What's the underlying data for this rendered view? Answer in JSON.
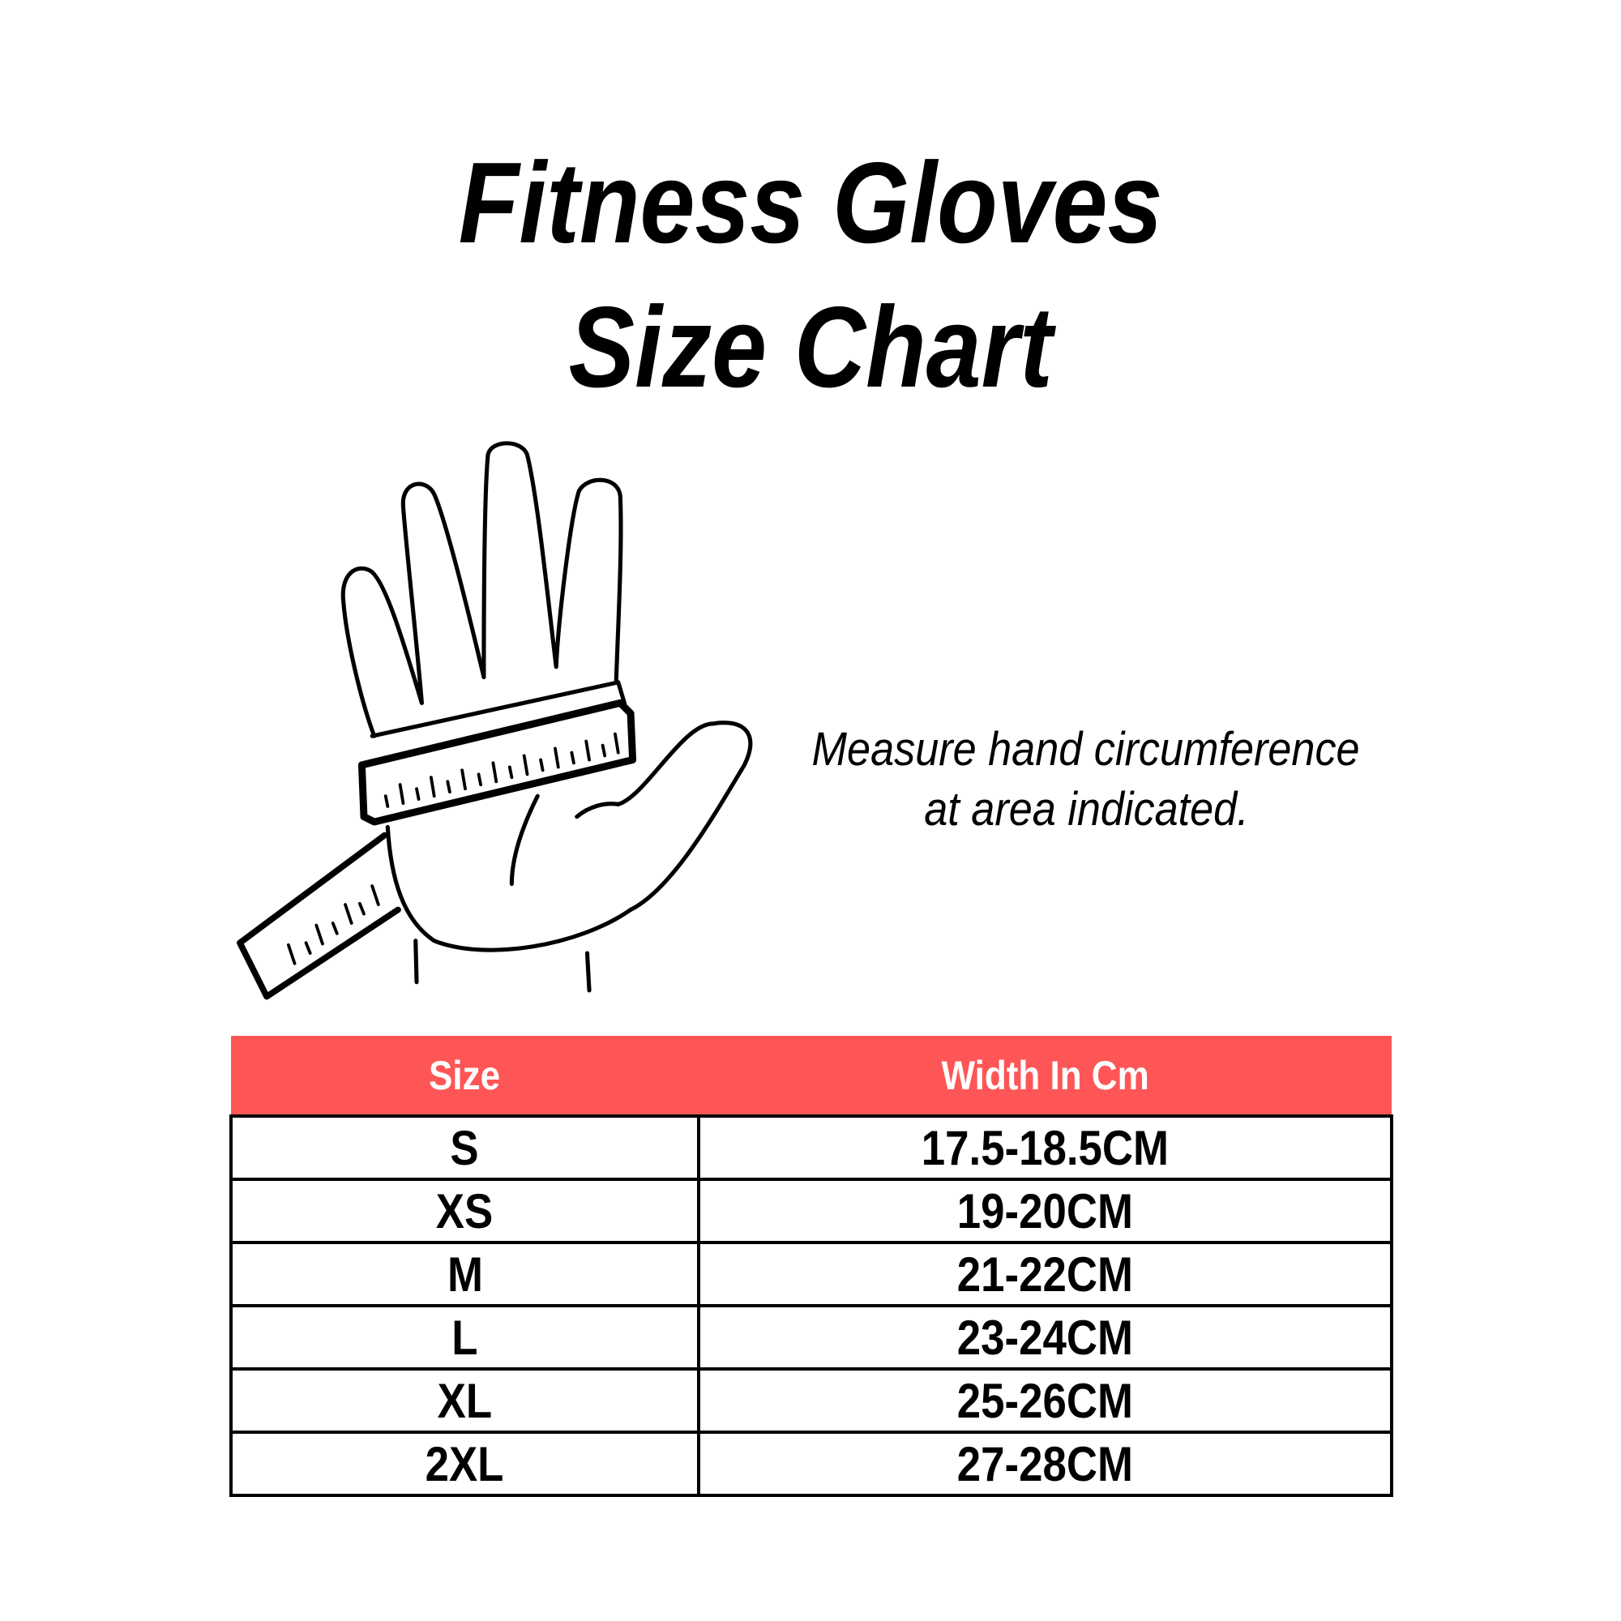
{
  "title": {
    "line1": "Fitness Gloves",
    "line2": "Size Chart"
  },
  "instruction": {
    "line1": "Measure hand circumference",
    "line2": "at area indicated."
  },
  "illustration": {
    "icon": "hand-with-measuring-tape-icon"
  },
  "colors": {
    "header_bg": "#fe5656",
    "header_text": "#ffffff",
    "border": "#000000"
  },
  "table": {
    "headers": [
      "Size",
      "Width In Cm"
    ],
    "rows": [
      {
        "size": "S",
        "width": "17.5-18.5CM"
      },
      {
        "size": "XS",
        "width": "19-20CM"
      },
      {
        "size": "M",
        "width": "21-22CM"
      },
      {
        "size": "L",
        "width": "23-24CM"
      },
      {
        "size": "XL",
        "width": "25-26CM"
      },
      {
        "size": "2XL",
        "width": "27-28CM"
      }
    ]
  }
}
